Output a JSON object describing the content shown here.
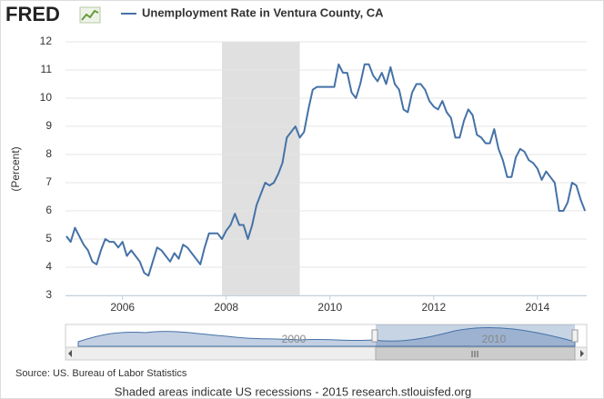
{
  "logo": "FRED",
  "source": "Source: US. Bureau of Labor Statistics",
  "footer": "Shaded areas indicate US recessions - 2015 research.stlouisfed.org",
  "navigator": {
    "labels": [
      "2000",
      "2010"
    ]
  },
  "chart_data": {
    "type": "line",
    "y_label": "(Percent)",
    "recession": [
      2007.917,
      2009.417
    ],
    "recession_color": "#e0e0e0",
    "xlim": [
      2004.9,
      2014.95
    ],
    "xticks": [
      2006,
      2008,
      2010,
      2012,
      2014
    ],
    "ylim": [
      3,
      12
    ],
    "yticks": [
      3,
      4,
      5,
      6,
      7,
      8,
      9,
      10,
      11,
      12
    ],
    "grid": true,
    "x": [
      2004.917,
      2005.0,
      2005.083,
      2005.167,
      2005.25,
      2005.333,
      2005.417,
      2005.5,
      2005.583,
      2005.667,
      2005.75,
      2005.833,
      2005.917,
      2006.0,
      2006.083,
      2006.167,
      2006.25,
      2006.333,
      2006.417,
      2006.5,
      2006.583,
      2006.667,
      2006.75,
      2006.833,
      2006.917,
      2007.0,
      2007.083,
      2007.167,
      2007.25,
      2007.333,
      2007.417,
      2007.5,
      2007.583,
      2007.667,
      2007.75,
      2007.833,
      2007.917,
      2008.0,
      2008.083,
      2008.167,
      2008.25,
      2008.333,
      2008.417,
      2008.5,
      2008.583,
      2008.667,
      2008.75,
      2008.833,
      2008.917,
      2009.0,
      2009.083,
      2009.167,
      2009.25,
      2009.333,
      2009.417,
      2009.5,
      2009.583,
      2009.667,
      2009.75,
      2009.833,
      2009.917,
      2010.0,
      2010.083,
      2010.167,
      2010.25,
      2010.333,
      2010.417,
      2010.5,
      2010.583,
      2010.667,
      2010.75,
      2010.833,
      2010.917,
      2011.0,
      2011.083,
      2011.167,
      2011.25,
      2011.333,
      2011.417,
      2011.5,
      2011.583,
      2011.667,
      2011.75,
      2011.833,
      2011.917,
      2012.0,
      2012.083,
      2012.167,
      2012.25,
      2012.333,
      2012.417,
      2012.5,
      2012.583,
      2012.667,
      2012.75,
      2012.833,
      2012.917,
      2013.0,
      2013.083,
      2013.167,
      2013.25,
      2013.333,
      2013.417,
      2013.5,
      2013.583,
      2013.667,
      2013.75,
      2013.833,
      2013.917,
      2014.0,
      2014.083,
      2014.167,
      2014.25,
      2014.333,
      2014.417,
      2014.5,
      2014.583,
      2014.667,
      2014.75,
      2014.833,
      2014.917
    ],
    "series": [
      {
        "name": "Unemployment Rate in Ventura County, CA",
        "color": "#4572a7",
        "values": [
          5.1,
          4.9,
          5.4,
          5.1,
          4.8,
          4.6,
          4.2,
          4.1,
          4.6,
          5.0,
          4.9,
          4.9,
          4.7,
          4.9,
          4.4,
          4.6,
          4.4,
          4.2,
          3.8,
          3.7,
          4.2,
          4.7,
          4.6,
          4.4,
          4.2,
          4.5,
          4.3,
          4.8,
          4.7,
          4.5,
          4.3,
          4.1,
          4.7,
          5.2,
          5.2,
          5.2,
          5.0,
          5.3,
          5.5,
          5.9,
          5.5,
          5.5,
          5.0,
          5.5,
          6.2,
          6.6,
          7.0,
          6.9,
          7.0,
          7.3,
          7.7,
          8.6,
          8.8,
          9.0,
          8.6,
          8.8,
          9.6,
          10.3,
          10.4,
          10.4,
          10.4,
          10.4,
          10.4,
          11.2,
          10.9,
          10.9,
          10.2,
          10.0,
          10.5,
          11.2,
          11.2,
          10.8,
          10.6,
          10.9,
          10.5,
          11.1,
          10.5,
          10.3,
          9.6,
          9.5,
          10.2,
          10.5,
          10.5,
          10.3,
          9.9,
          9.7,
          9.6,
          9.9,
          9.5,
          9.3,
          8.6,
          8.6,
          9.2,
          9.6,
          9.4,
          8.7,
          8.6,
          8.4,
          8.4,
          8.9,
          8.2,
          7.8,
          7.2,
          7.2,
          7.9,
          8.2,
          8.1,
          7.8,
          7.7,
          7.5,
          7.1,
          7.4,
          7.2,
          7.0,
          6.0,
          6.0,
          6.3,
          7.0,
          6.9,
          6.4,
          6.0
        ]
      }
    ]
  }
}
